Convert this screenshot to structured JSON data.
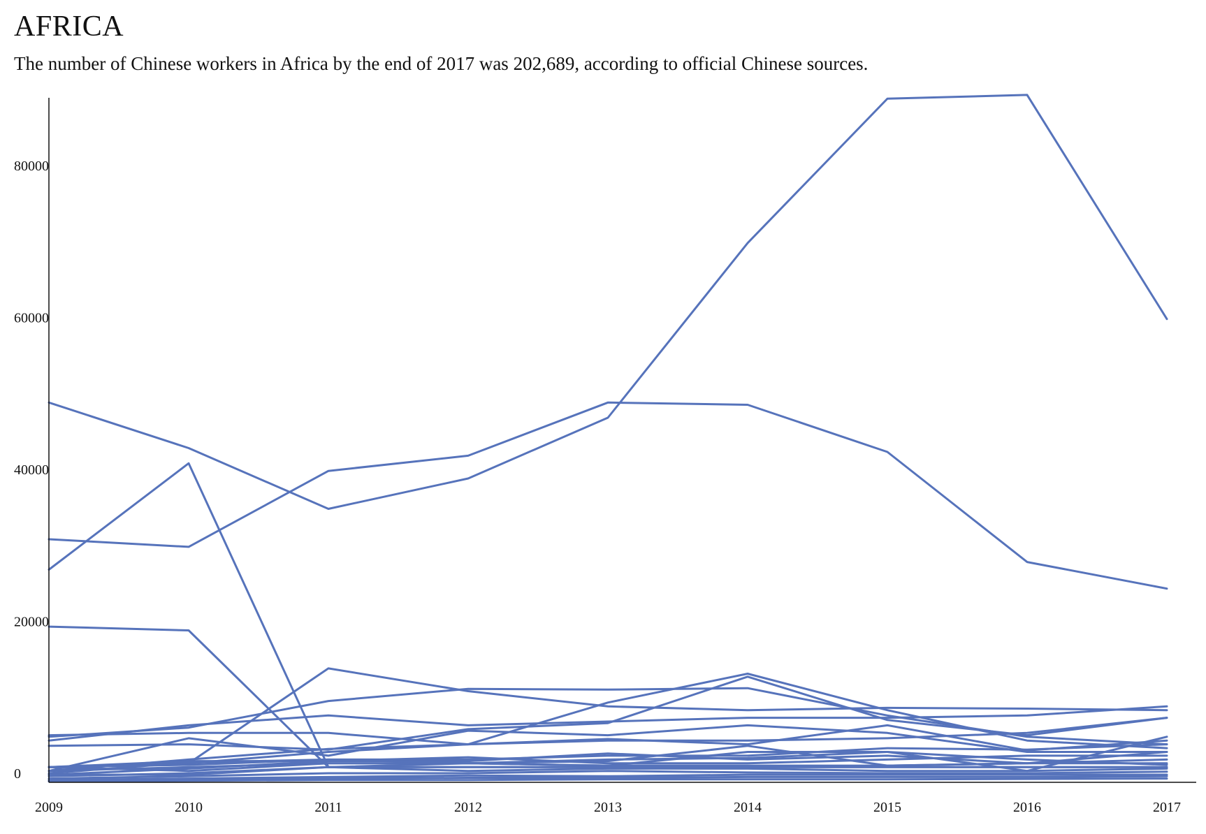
{
  "header": {
    "title": "AFRICA",
    "subtitle": "The number of Chinese workers in Africa by the end of 2017 was 202,689, according to official Chinese sources."
  },
  "colors": {
    "line": "#5673bb",
    "axis": "#111111"
  },
  "chart_data": {
    "type": "line",
    "title": "AFRICA",
    "subtitle": "The number of Chinese workers in Africa by the end of 2017 was 202,689, according to official Chinese sources.",
    "xlabel": "",
    "ylabel": "",
    "x": [
      2009,
      2010,
      2011,
      2012,
      2013,
      2014,
      2015,
      2016,
      2017
    ],
    "x_ticks": [
      "2009",
      "2010",
      "2011",
      "2012",
      "2013",
      "2014",
      "2015",
      "2016",
      "2017"
    ],
    "y_ticks": [
      "0",
      "20000",
      "40000",
      "60000",
      "80000"
    ],
    "ylim": [
      0,
      91500
    ],
    "grid": false,
    "legend": "none",
    "series": [
      {
        "values": [
          28000,
          42000,
          2000,
          2000,
          2000,
          2000,
          2000,
          2000,
          2000
        ]
      },
      {
        "values": [
          32000,
          31000,
          41000,
          43000,
          50000,
          49700,
          43500,
          29000,
          25500
        ]
      },
      {
        "values": [
          50000,
          44000,
          36000,
          40000,
          48000,
          71000,
          90000,
          90500,
          61000
        ]
      },
      {
        "values": [
          20500,
          20000,
          2000,
          2000,
          2000,
          2000,
          2000,
          2000,
          2000
        ]
      },
      {
        "values": [
          2000,
          2500,
          15000,
          12000,
          10000,
          9500,
          9800,
          9700,
          9500
        ]
      },
      {
        "values": [
          5500,
          7500,
          8800,
          7500,
          8000,
          8500,
          8500,
          8800,
          10000
        ]
      },
      {
        "values": [
          6000,
          7200,
          10700,
          12300,
          12200,
          12400,
          8800,
          6000,
          5000
        ]
      },
      {
        "values": [
          6200,
          6500,
          6500,
          5000,
          10500,
          14300,
          9500,
          5500,
          4500
        ]
      },
      {
        "values": [
          4800,
          5000,
          4300,
          7000,
          7800,
          13900,
          8200,
          6200,
          8500
        ]
      },
      {
        "values": [
          2000,
          2500,
          4000,
          5000,
          5500,
          5500,
          5800,
          6500,
          8500
        ]
      },
      {
        "values": [
          1500,
          5800,
          3500,
          6800,
          6200,
          7500,
          6500,
          4000,
          4000
        ]
      },
      {
        "values": [
          1500,
          3000,
          4400,
          5000,
          5700,
          5000,
          7500,
          4200,
          5500
        ]
      },
      {
        "values": [
          1200,
          2600,
          3000,
          3000,
          3500,
          3500,
          4500,
          4300,
          5000
        ]
      },
      {
        "values": [
          2000,
          2800,
          2800,
          2800,
          3800,
          3000,
          3500,
          2500,
          4000
        ]
      },
      {
        "values": [
          1500,
          2000,
          2500,
          2500,
          2200,
          4000,
          4000,
          1500,
          6000
        ]
      },
      {
        "values": [
          2000,
          1500,
          2500,
          2500,
          2800,
          4800,
          2200,
          2500,
          3000
        ]
      },
      {
        "values": [
          1000,
          1800,
          2800,
          3300,
          2500,
          2500,
          3000,
          3500,
          3500
        ]
      },
      {
        "values": [
          800,
          1200,
          2000,
          2500,
          3000,
          3200,
          4000,
          3000,
          2300
        ]
      },
      {
        "values": [
          2000,
          2300,
          3000,
          2500,
          2200,
          2200,
          2200,
          2500,
          2500
        ]
      },
      {
        "values": [
          1000,
          1000,
          2000,
          1500,
          1800,
          1800,
          1500,
          1500,
          1800
        ]
      },
      {
        "values": [
          500,
          800,
          1200,
          1200,
          1500,
          1300,
          1200,
          1200,
          1400
        ]
      },
      {
        "values": [
          300,
          500,
          700,
          900,
          800,
          1000,
          1000,
          1000,
          1000
        ]
      },
      {
        "values": [
          200,
          300,
          500,
          600,
          600,
          700,
          700,
          700,
          800
        ]
      },
      {
        "values": [
          100,
          200,
          300,
          300,
          400,
          400,
          400,
          450,
          500
        ]
      }
    ]
  }
}
